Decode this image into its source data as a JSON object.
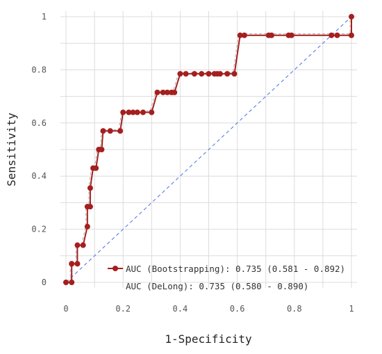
{
  "chart_data": {
    "type": "line",
    "title": "",
    "xlabel": "1-Specificity",
    "ylabel": "Sensitivity",
    "xlim": [
      0,
      1
    ],
    "ylim": [
      0,
      1
    ],
    "x_ticks": [
      "0",
      "0.2",
      "0.4",
      "0.6",
      "0.8",
      "1"
    ],
    "y_ticks": [
      "0",
      "0.2",
      "0.4",
      "0.6",
      "0.8",
      "1"
    ],
    "grid": true,
    "legend_position": "bottom-right",
    "colors": {
      "roc": "#a51f1f",
      "reference": "#4a6fe3",
      "grid": "#dcdcdc"
    },
    "legend": [
      "AUC (Bootstrapping): 0.735 (0.581 - 0.892)",
      "AUC (DeLong): 0.735 (0.580 - 0.890)"
    ],
    "series": [
      {
        "name": "AUC (Bootstrapping): 0.735 (0.581 - 0.892)",
        "x": [
          0,
          0.02,
          0.02,
          0.02,
          0.04,
          0.04,
          0.06,
          0.075,
          0.075,
          0.085,
          0.085,
          0.095,
          0.105,
          0.115,
          0.125,
          0.13,
          0.155,
          0.19,
          0.2,
          0.22,
          0.235,
          0.25,
          0.27,
          0.3,
          0.32,
          0.34,
          0.355,
          0.37,
          0.38,
          0.4,
          0.42,
          0.45,
          0.475,
          0.5,
          0.52,
          0.53,
          0.54,
          0.565,
          0.59,
          0.61,
          0.625,
          0.71,
          0.72,
          0.78,
          0.79,
          0.93,
          0.95,
          1.0,
          1.0
        ],
        "y": [
          0,
          0,
          0.07,
          0.07,
          0.07,
          0.14,
          0.14,
          0.21,
          0.285,
          0.285,
          0.355,
          0.43,
          0.43,
          0.5,
          0.5,
          0.57,
          0.57,
          0.57,
          0.64,
          0.64,
          0.64,
          0.64,
          0.64,
          0.64,
          0.715,
          0.715,
          0.715,
          0.715,
          0.715,
          0.785,
          0.785,
          0.785,
          0.785,
          0.785,
          0.785,
          0.785,
          0.785,
          0.785,
          0.785,
          0.93,
          0.93,
          0.93,
          0.93,
          0.93,
          0.93,
          0.93,
          0.93,
          0.93,
          1.0
        ]
      }
    ]
  }
}
